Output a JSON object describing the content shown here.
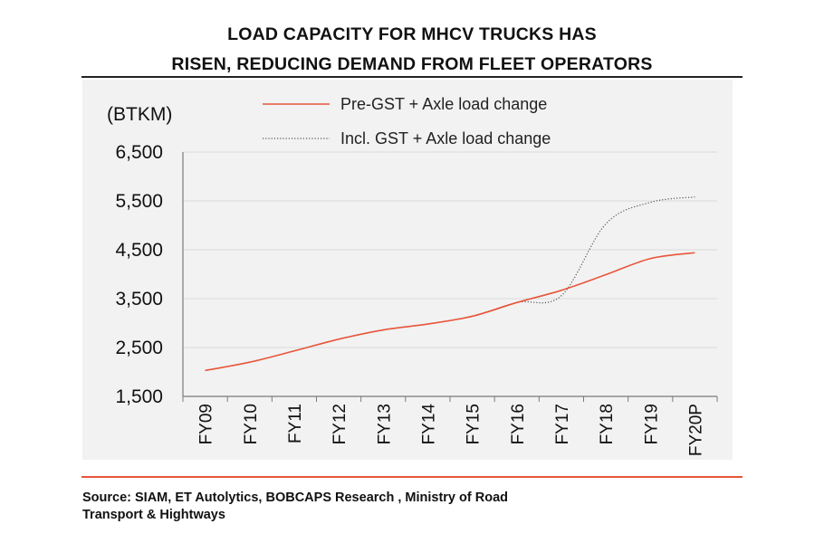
{
  "header": {
    "title_line1": "LOAD CAPACITY FOR MHCV TRUCKS HAS",
    "title_line2": "RISEN, REDUCING DEMAND FROM FLEET OPERATORS"
  },
  "footer": {
    "source_line1": "Source: SIAM, ET Autolytics, BOBCAPS Research , Ministry of Road",
    "source_line2": "Transport & Hightways"
  },
  "colors": {
    "accent": "#e8563a",
    "dotted_series": "#555555",
    "panel": "#f2f2f2"
  },
  "chart_data": {
    "type": "line",
    "title": "LOAD CAPACITY FOR MHCV TRUCKS HAS RISEN, REDUCING DEMAND FROM FLEET OPERATORS",
    "ylabel": "(BTKM)",
    "xlabel": "",
    "categories": [
      "FY09",
      "FY10",
      "FY11",
      "FY12",
      "FY13",
      "FY14",
      "FY15",
      "FY16",
      "FY17",
      "FY18",
      "FY19",
      "FY20P"
    ],
    "series": [
      {
        "name": "Pre-GST + Axle load change",
        "style": "solid",
        "color": "#e8563a",
        "values": [
          2030,
          2200,
          2430,
          2670,
          2860,
          2980,
          3140,
          3420,
          3670,
          3990,
          4320,
          4440
        ]
      },
      {
        "name": "Incl. GST + Axle load change",
        "style": "dotted",
        "color": "#555555",
        "values": [
          2030,
          2200,
          2430,
          2670,
          2860,
          2980,
          3140,
          3420,
          3560,
          5030,
          5470,
          5580
        ]
      }
    ],
    "ylim": [
      1500,
      6500
    ],
    "yticks": [
      "1,500",
      "2,500",
      "3,500",
      "4,500",
      "5,500",
      "6,500"
    ],
    "ytick_values": [
      1500,
      2500,
      3500,
      4500,
      5500,
      6500
    ],
    "grid": true,
    "legend_position": "top-center"
  }
}
